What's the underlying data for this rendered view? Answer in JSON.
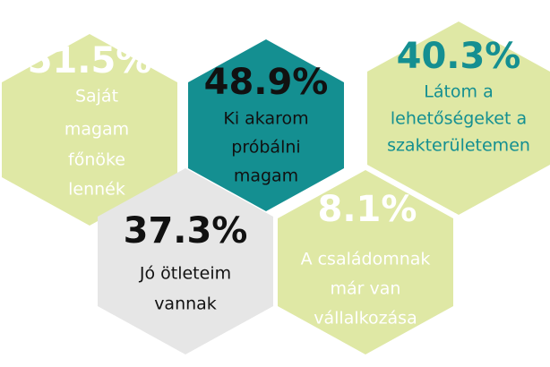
{
  "items": [
    {
      "value": "51.5%",
      "lines": [
        "Saját",
        "magam",
        "főnöke",
        "lennék"
      ]
    },
    {
      "value": "48.9%",
      "lines": [
        "Ki akarom",
        "próbálni",
        "magam"
      ]
    },
    {
      "value": "40.3%",
      "lines": [
        "Látom a",
        "lehetőségeket a",
        "szakterületemen"
      ]
    },
    {
      "value": "37.3%",
      "lines": [
        "Jó ötleteim",
        "vannak"
      ]
    },
    {
      "value": "8.1%",
      "lines": [
        "A családomnak",
        "már van",
        "vállalkozása"
      ]
    }
  ]
}
